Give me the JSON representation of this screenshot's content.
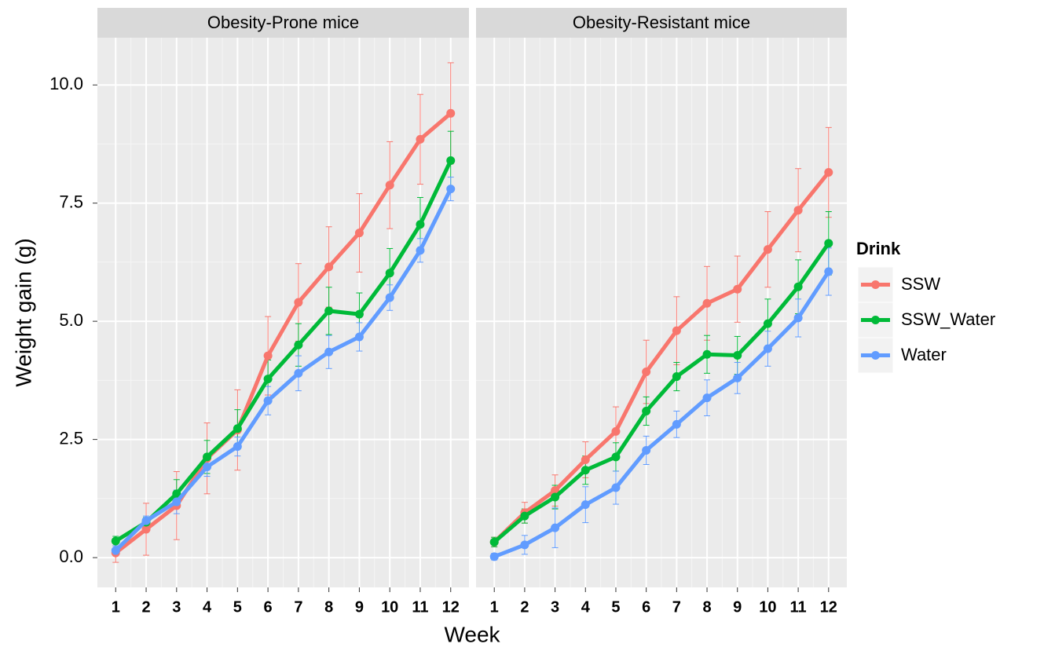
{
  "chart_data": [
    {
      "type": "line",
      "title": "Obesity-Prone mice",
      "ylabel": "Weight gain (g)",
      "xlabel": "Week",
      "legend_title": "Drink",
      "categories": [
        "1",
        "2",
        "3",
        "4",
        "5",
        "6",
        "7",
        "8",
        "9",
        "10",
        "11",
        "12"
      ],
      "series": [
        {
          "name": "SSW",
          "color": "#F8766D",
          "values": [
            0.1,
            0.6,
            1.1,
            2.1,
            2.7,
            4.27,
            5.4,
            6.15,
            6.87,
            7.88,
            8.85,
            9.4
          ],
          "errors": [
            0.2,
            0.55,
            0.72,
            0.75,
            0.85,
            0.83,
            0.82,
            0.85,
            0.83,
            0.92,
            0.95,
            1.07
          ]
        },
        {
          "name": "SSW_Water",
          "color": "#00BA38",
          "values": [
            0.35,
            0.75,
            1.35,
            2.13,
            2.73,
            3.78,
            4.5,
            5.22,
            5.15,
            6.02,
            7.05,
            8.4
          ],
          "errors": [
            0.1,
            0.1,
            0.3,
            0.35,
            0.4,
            0.4,
            0.45,
            0.5,
            0.45,
            0.52,
            0.57,
            0.62
          ]
        },
        {
          "name": "Water",
          "color": "#619CFF",
          "values": [
            0.15,
            0.78,
            1.18,
            1.92,
            2.35,
            3.32,
            3.9,
            4.35,
            4.67,
            5.5,
            6.5,
            7.8
          ],
          "errors": [
            0.1,
            0.1,
            0.25,
            0.2,
            0.2,
            0.3,
            0.37,
            0.35,
            0.3,
            0.27,
            0.25,
            0.25
          ]
        }
      ],
      "ylim": [
        -0.63,
        11.0
      ],
      "yticks": [
        {
          "value": 0,
          "label": "0.0"
        },
        {
          "value": 2.5,
          "label": "2.5"
        },
        {
          "value": 5,
          "label": "5.0"
        },
        {
          "value": 7.5,
          "label": "7.5"
        },
        {
          "value": 10,
          "label": "10.0"
        }
      ],
      "grid": true
    },
    {
      "type": "line",
      "title": "Obesity-Resistant mice",
      "categories": [
        "1",
        "2",
        "3",
        "4",
        "5",
        "6",
        "7",
        "8",
        "9",
        "10",
        "11",
        "12"
      ],
      "series": [
        {
          "color": "#F8766D",
          "values": [
            0.33,
            0.95,
            1.42,
            2.07,
            2.67,
            3.93,
            4.8,
            5.38,
            5.68,
            6.52,
            7.35,
            8.15
          ],
          "errors": [
            0.1,
            0.22,
            0.33,
            0.38,
            0.52,
            0.67,
            0.72,
            0.78,
            0.7,
            0.8,
            0.88,
            0.95
          ]
        },
        {
          "color": "#00BA38",
          "values": [
            0.33,
            0.88,
            1.28,
            1.85,
            2.13,
            3.1,
            3.83,
            4.3,
            4.28,
            4.95,
            5.73,
            6.65
          ],
          "errors": [
            0.1,
            0.15,
            0.25,
            0.3,
            0.3,
            0.3,
            0.3,
            0.4,
            0.4,
            0.52,
            0.57,
            0.67
          ]
        },
        {
          "color": "#619CFF",
          "values": [
            0.02,
            0.27,
            0.63,
            1.12,
            1.48,
            2.27,
            2.82,
            3.38,
            3.8,
            4.42,
            5.07,
            6.05
          ],
          "errors": [
            0.07,
            0.2,
            0.42,
            0.38,
            0.35,
            0.3,
            0.28,
            0.38,
            0.33,
            0.37,
            0.4,
            0.5
          ]
        }
      ],
      "ylim": [
        -0.63,
        11.0
      ],
      "yticks": [
        0,
        2.5,
        5,
        7.5,
        10
      ],
      "grid": true
    }
  ]
}
